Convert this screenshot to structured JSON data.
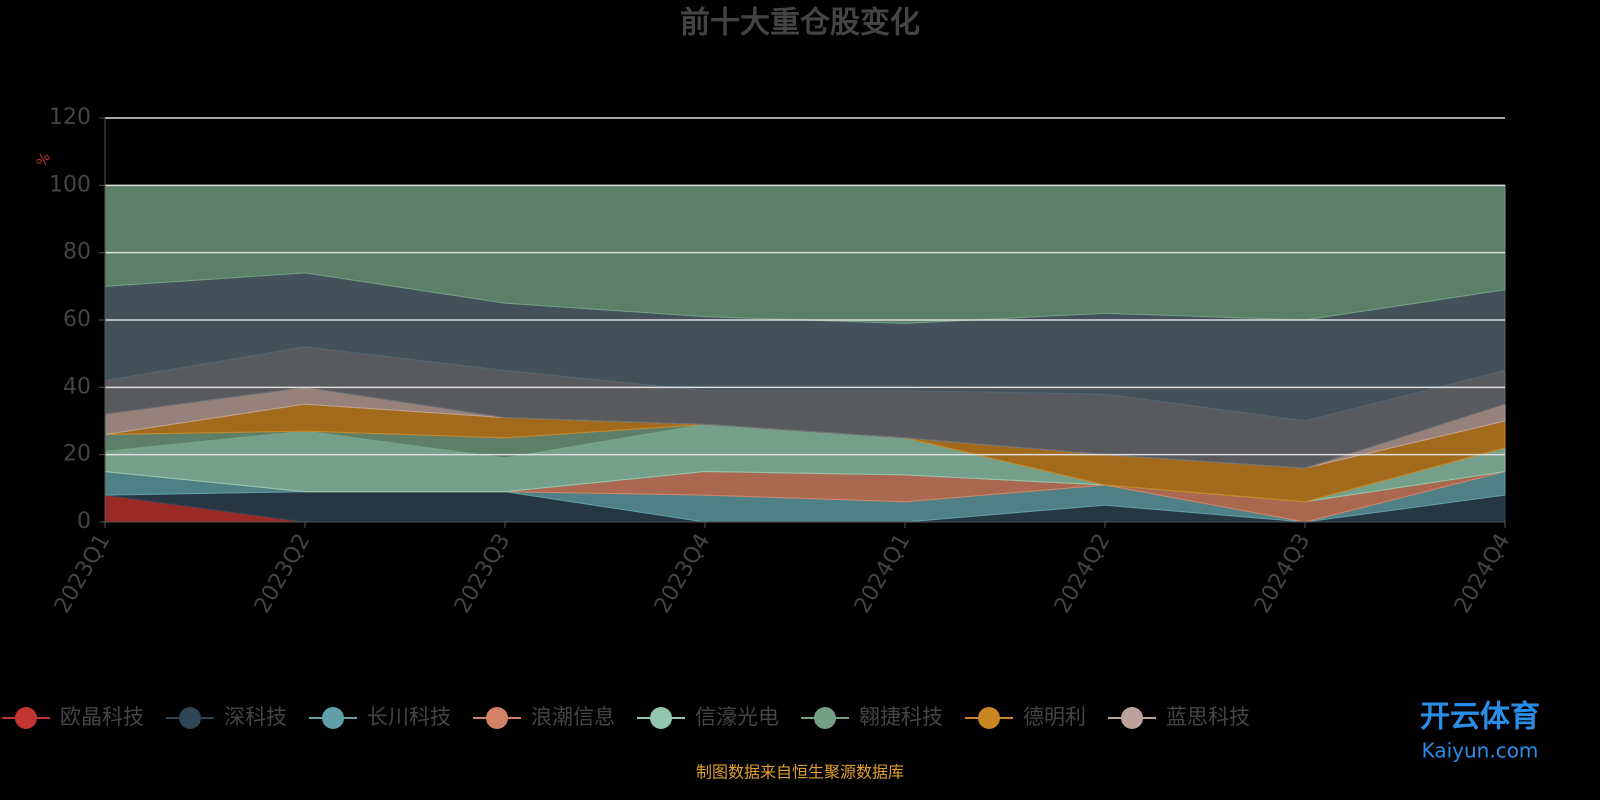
{
  "chart_data": {
    "type": "stacked_area",
    "title": "前十大重仓股变化",
    "y_label": "%",
    "footer": "制图数据来自恒生聚源数据库",
    "watermark": "开云体育",
    "watermark_sub": "Kaiyun.com",
    "categories": [
      "2023Q1",
      "2023Q2",
      "2023Q3",
      "2023Q4",
      "2024Q1",
      "2024Q2",
      "2024Q3",
      "2024Q4"
    ],
    "ylim": [
      0,
      120
    ],
    "yticks": [
      0,
      20,
      40,
      60,
      80,
      100,
      120
    ],
    "grid": true,
    "series": [
      {
        "name": "欧晶科技",
        "color": "#c23531",
        "values": [
          8,
          0,
          0,
          0,
          0,
          0,
          0,
          0
        ]
      },
      {
        "name": "深科技",
        "color": "#2f4554",
        "values": [
          0,
          9,
          9,
          0,
          0,
          5,
          0,
          8
        ]
      },
      {
        "name": "长川科技",
        "color": "#61a0a8",
        "values": [
          7,
          0,
          0,
          8,
          6,
          6,
          0,
          7
        ]
      },
      {
        "name": "浪潮信息",
        "color": "#d48265",
        "values": [
          0,
          0,
          0,
          7,
          8,
          0,
          6,
          0
        ]
      },
      {
        "name": "信濠光电",
        "color": "#91c7ae",
        "values": [
          6,
          18,
          10,
          14,
          11,
          0,
          0,
          7
        ]
      },
      {
        "name": "翱捷科技",
        "color": "#749f83",
        "values": [
          5,
          0,
          6,
          0,
          0,
          0,
          0,
          0
        ]
      },
      {
        "name": "德明利",
        "color": "#ca8622",
        "values": [
          0,
          8,
          6,
          0,
          0,
          9,
          10,
          8
        ]
      },
      {
        "name": "蓝思科技",
        "color": "#bda29a",
        "values": [
          6,
          5,
          0,
          0,
          0,
          0,
          0,
          5
        ]
      },
      {
        "color": "#6e7074",
        "values": [
          10,
          12,
          14,
          10,
          14,
          18,
          14,
          10
        ]
      },
      {
        "color": "#546570",
        "values": [
          28,
          22,
          20,
          22,
          20,
          24,
          30,
          24
        ]
      },
      {
        "color": "#749f83",
        "values": [
          30,
          26,
          35,
          39,
          41,
          38,
          40,
          31
        ]
      }
    ]
  }
}
